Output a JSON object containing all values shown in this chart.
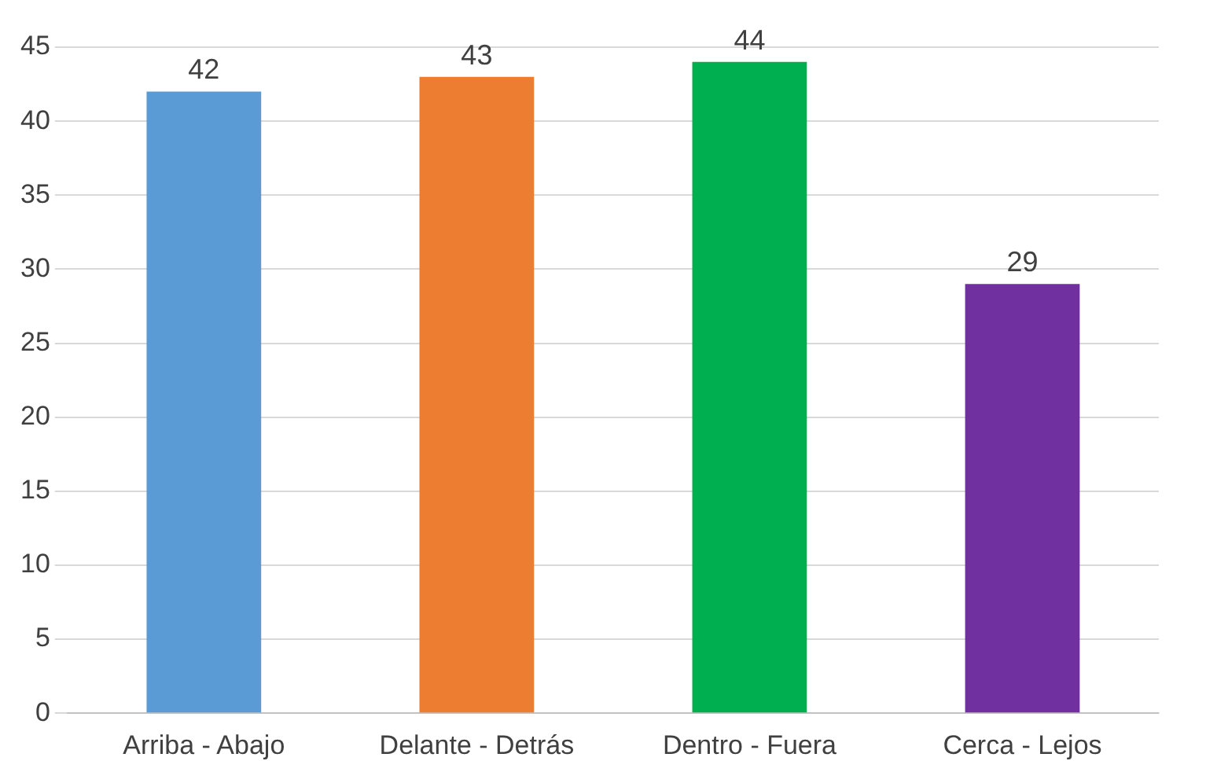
{
  "chart_data": {
    "type": "bar",
    "categories": [
      "Arriba - Abajo",
      "Delante - Detrás",
      "Dentro - Fuera",
      "Cerca - Lejos"
    ],
    "values": [
      42,
      43,
      44,
      29
    ],
    "colors": [
      "#5b9bd5",
      "#ed7d31",
      "#00b050",
      "#7030a0"
    ],
    "ylim": [
      0,
      45
    ],
    "yticks": [
      0,
      5,
      10,
      15,
      20,
      25,
      30,
      35,
      40,
      45
    ],
    "grid": "y",
    "data_labels": true,
    "legend": false
  }
}
